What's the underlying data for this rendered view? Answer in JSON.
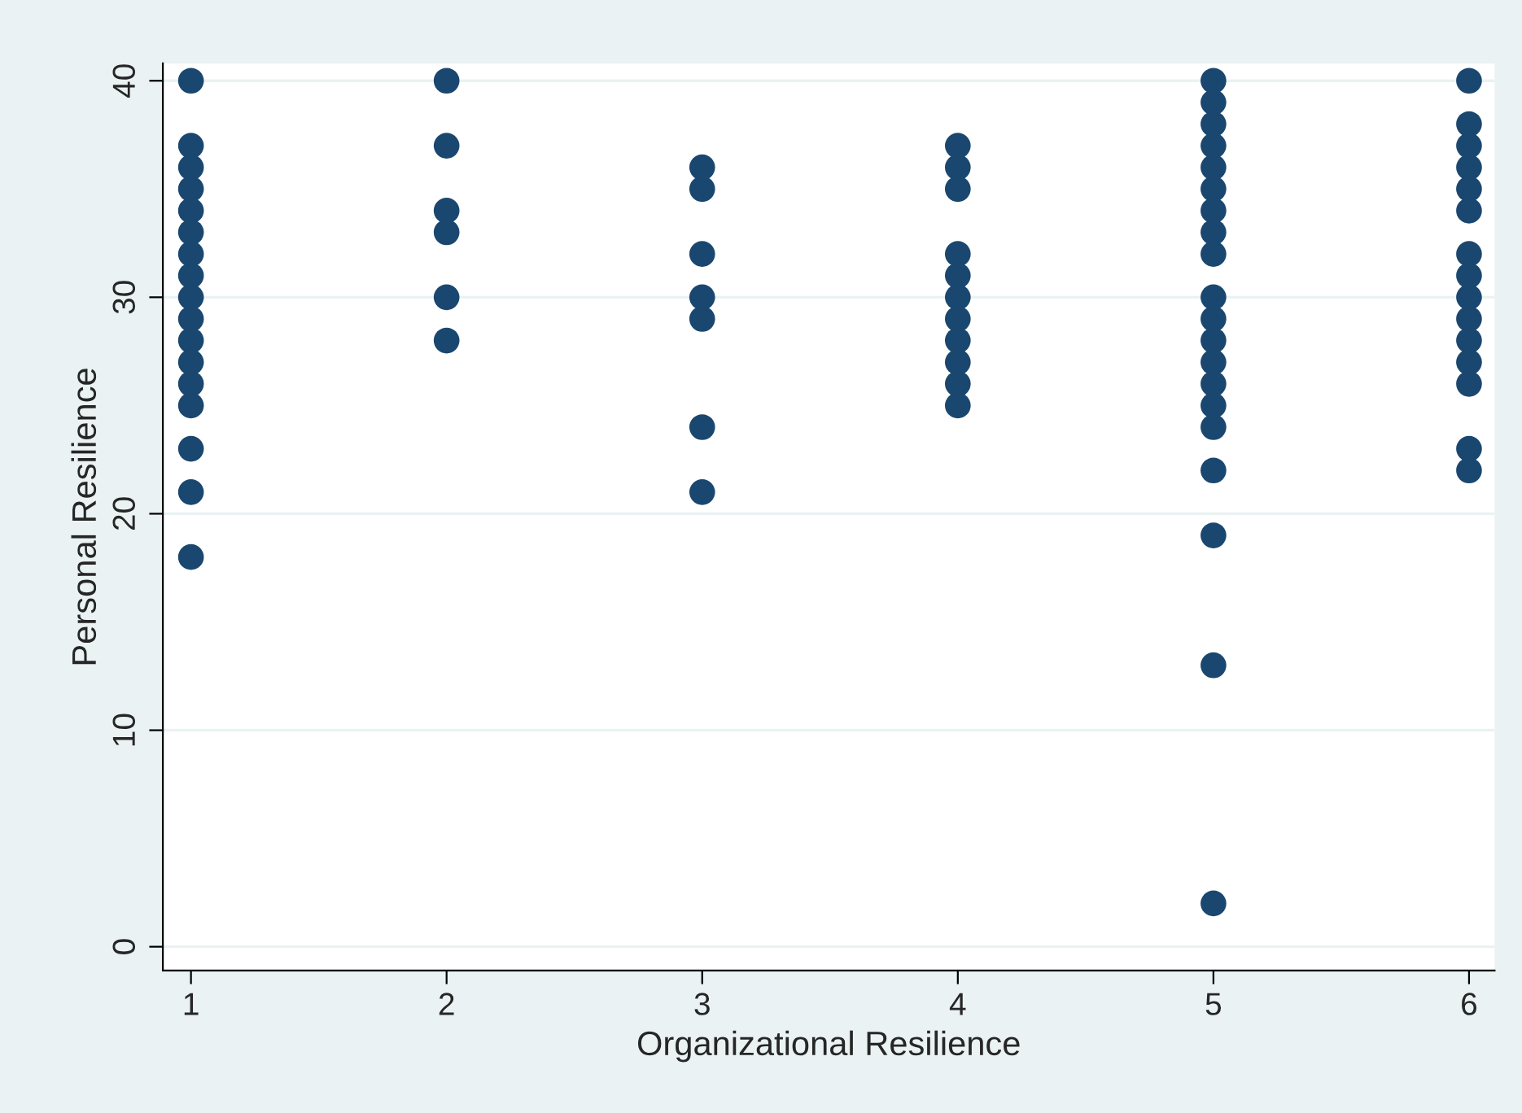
{
  "chart_data": {
    "type": "scatter",
    "xlabel": "Organizational Resilience",
    "ylabel": "Personal Resilience",
    "series": [
      {
        "color": "#1a476f",
        "x": [
          1,
          1,
          1,
          1,
          1,
          1,
          1,
          1,
          1,
          1,
          1,
          1,
          1,
          1,
          1,
          1,
          1,
          2,
          2,
          2,
          2,
          2,
          2,
          3,
          3,
          3,
          3,
          3,
          3,
          3,
          4,
          4,
          4,
          4,
          4,
          4,
          4,
          4,
          4,
          4,
          4,
          5,
          5,
          5,
          5,
          5,
          5,
          5,
          5,
          5,
          5,
          5,
          5,
          5,
          5,
          5,
          5,
          5,
          5,
          5,
          5,
          6,
          6,
          6,
          6,
          6,
          6,
          6,
          6,
          6,
          6,
          6,
          6,
          6,
          6,
          6
        ],
        "values": [
          40,
          37,
          36,
          35,
          34,
          33,
          32,
          31,
          30,
          29,
          28,
          27,
          26,
          25,
          23,
          21,
          18,
          40,
          37,
          34,
          33,
          30,
          28,
          36,
          35,
          32,
          30,
          29,
          24,
          21,
          37,
          36,
          35,
          32,
          31,
          30,
          29,
          28,
          27,
          26,
          25,
          40,
          39,
          38,
          37,
          36,
          35,
          34,
          33,
          32,
          30,
          29,
          28,
          27,
          26,
          25,
          24,
          22,
          19,
          13,
          2,
          40,
          38,
          37,
          36,
          35,
          34,
          32,
          31,
          30,
          29,
          28,
          27,
          26,
          23,
          22
        ]
      }
    ],
    "xlim": [
      0.89,
      6.1
    ],
    "xticks": [
      1,
      2,
      3,
      4,
      5,
      6
    ],
    "ylim": [
      -1.1,
      40.8
    ],
    "yticks": [
      0,
      10,
      20,
      30,
      40
    ],
    "grid": "y",
    "marker": "circle",
    "legend": false
  }
}
